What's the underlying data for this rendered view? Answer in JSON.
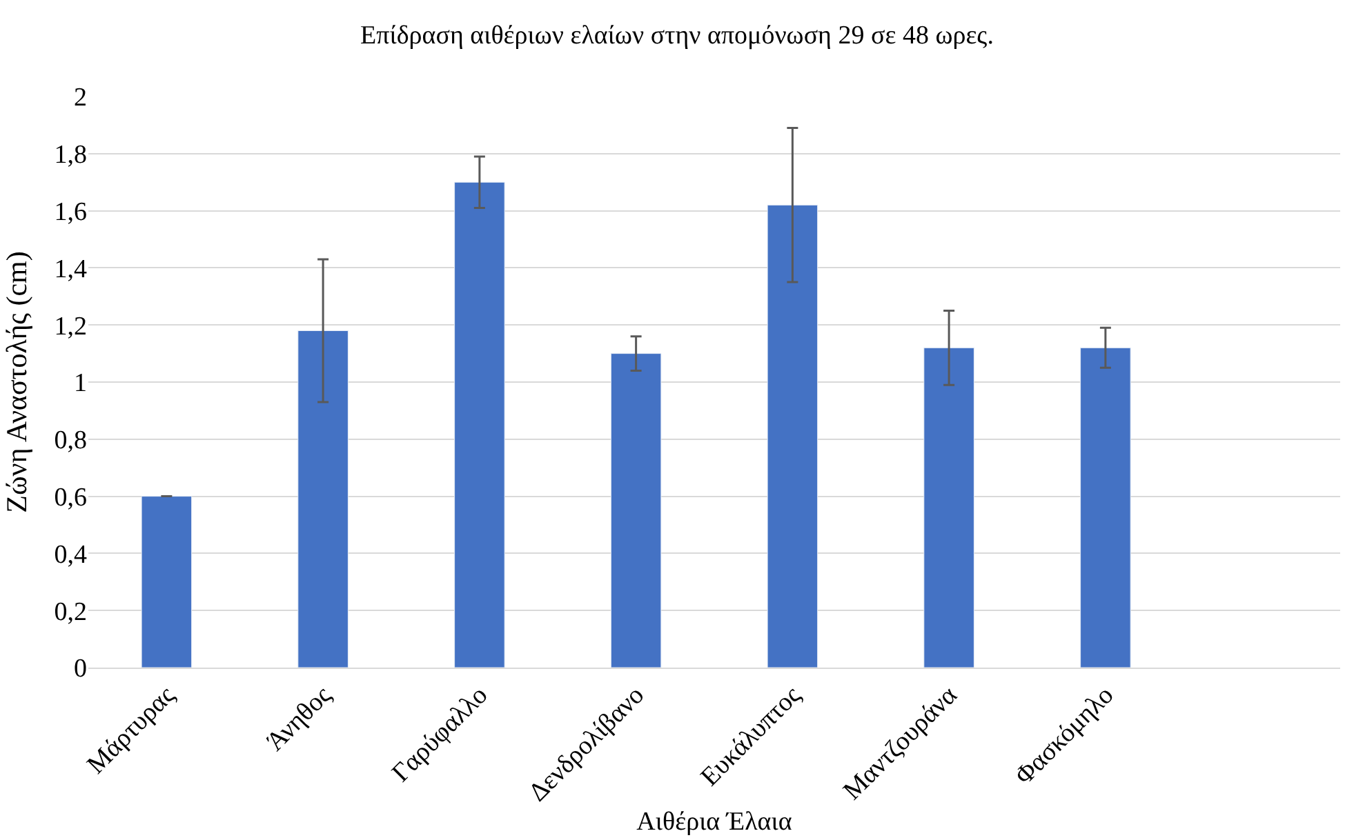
{
  "chart_data": {
    "type": "bar",
    "title": "Επίδραση αιθέριων ελαίων στην απομόνωση 29 σε 48 ωρες.",
    "xlabel": "Αιθέρια Έλαια",
    "ylabel": "Ζώνη Αναστολής (cm)",
    "categories": [
      "Μάρτυρας",
      "Άνηθος",
      "Γαρύφαλλο",
      "Δενδρολίβανο",
      "Ευκάλυπτος",
      "Μαντζουράνα",
      "Φασκόμηλο",
      null
    ],
    "values": [
      0.6,
      1.18,
      1.7,
      1.1,
      1.62,
      1.12,
      1.12,
      null
    ],
    "errors": [
      0,
      0.25,
      0.09,
      0.06,
      0.27,
      0.13,
      0.07,
      null
    ],
    "color": "#4472c4",
    "ylim": [
      0,
      2
    ],
    "yticks": [
      0,
      {
        "value": 0.2,
        "label": "0,2"
      },
      {
        "value": 0.4,
        "label": "0,4"
      },
      {
        "value": 0.6,
        "label": "0,6"
      },
      {
        "value": 0.8,
        "label": "0,8"
      },
      1,
      {
        "value": 1.2,
        "label": "1,2"
      },
      {
        "value": 1.4,
        "label": "1,4"
      },
      {
        "value": 1.6,
        "label": "1,6"
      },
      {
        "value": 1.8,
        "label": "1,8"
      },
      2
    ],
    "grid": "y",
    "legend": false
  }
}
